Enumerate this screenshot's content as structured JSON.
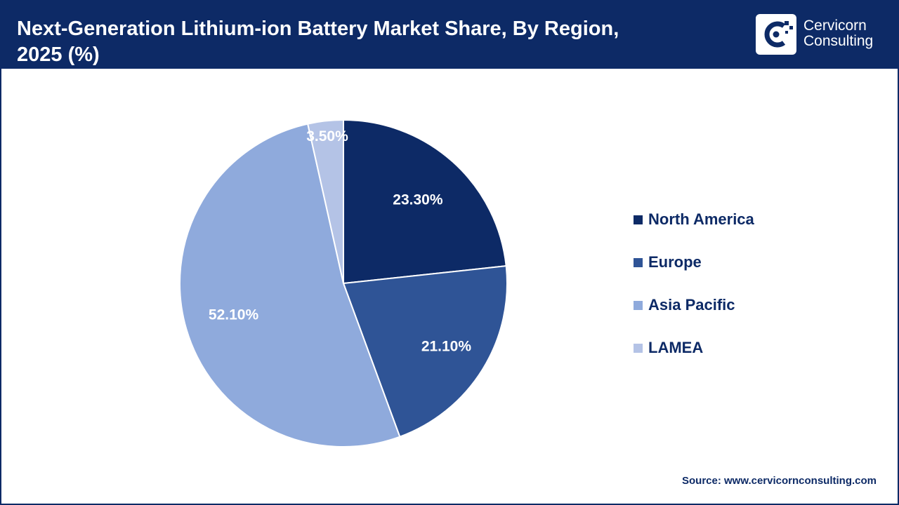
{
  "header": {
    "title_line1": "Next-Generation Lithium-ion Battery Market Share, By Region,",
    "title_line2": "2025 (%)"
  },
  "logo": {
    "line1": "Cervicorn",
    "line2": "Consulting",
    "icon": "cervicorn-logo-icon"
  },
  "chart_data": {
    "type": "pie",
    "title": "Next-Generation Lithium-ion Battery Market Share, By Region, 2025 (%)",
    "categories": [
      "North America",
      "Europe",
      "Asia Pacific",
      "LAMEA"
    ],
    "values": [
      23.3,
      21.1,
      52.1,
      3.5
    ],
    "labels": [
      "23.30%",
      "21.10%",
      "52.10%",
      "3.50%"
    ],
    "colors": [
      "#0d2a66",
      "#2f5496",
      "#8faadc",
      "#b4c3e6"
    ],
    "start_angle": "top, clockwise",
    "legend_position": "right"
  },
  "source": "Source: www.cervicornconsulting.com"
}
